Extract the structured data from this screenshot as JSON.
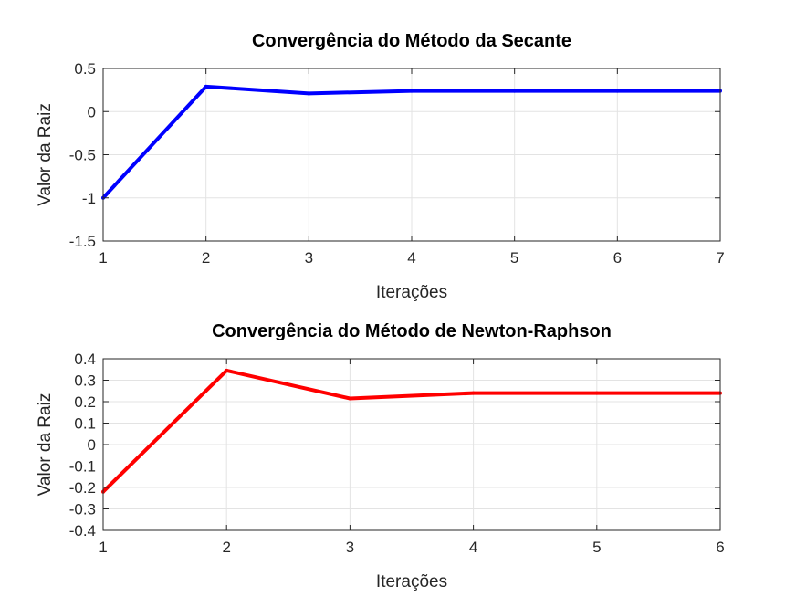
{
  "chart_data": [
    {
      "type": "line",
      "title": "Convergência do Método da Secante",
      "xlabel": "Iterações",
      "ylabel": "Valor da Raiz",
      "xlim": [
        1,
        7
      ],
      "ylim": [
        -1.5,
        0.5
      ],
      "xticks": [
        1,
        2,
        3,
        4,
        5,
        6,
        7
      ],
      "xtick_labels": [
        "1",
        "2",
        "3",
        "4",
        "5",
        "6",
        "7"
      ],
      "yticks": [
        -1.5,
        -1,
        -0.5,
        0,
        0.5
      ],
      "ytick_labels": [
        "-1.5",
        "-1",
        "-0.5",
        "0",
        "0.5"
      ],
      "grid": true,
      "series": [
        {
          "color": "#0000ff",
          "x": [
            1,
            2,
            3,
            4,
            5,
            6,
            7
          ],
          "y": [
            -1.0,
            0.29,
            0.21,
            0.24,
            0.24,
            0.24,
            0.24
          ]
        }
      ]
    },
    {
      "type": "line",
      "title": "Convergência do Método de Newton-Raphson",
      "xlabel": "Iterações",
      "ylabel": "Valor da Raiz",
      "xlim": [
        1,
        6
      ],
      "ylim": [
        -0.4,
        0.4
      ],
      "xticks": [
        1,
        2,
        3,
        4,
        5,
        6
      ],
      "xtick_labels": [
        "1",
        "2",
        "3",
        "4",
        "5",
        "6"
      ],
      "yticks": [
        -0.4,
        -0.3,
        -0.2,
        -0.1,
        0,
        0.1,
        0.2,
        0.3,
        0.4
      ],
      "ytick_labels": [
        "-0.4",
        "-0.3",
        "-0.2",
        "-0.1",
        "0",
        "0.1",
        "0.2",
        "0.3",
        "0.4"
      ],
      "grid": true,
      "series": [
        {
          "color": "#ff0000",
          "x": [
            1,
            2,
            3,
            4,
            5,
            6
          ],
          "y": [
            -0.22,
            0.345,
            0.215,
            0.24,
            0.24,
            0.24
          ]
        }
      ]
    }
  ]
}
